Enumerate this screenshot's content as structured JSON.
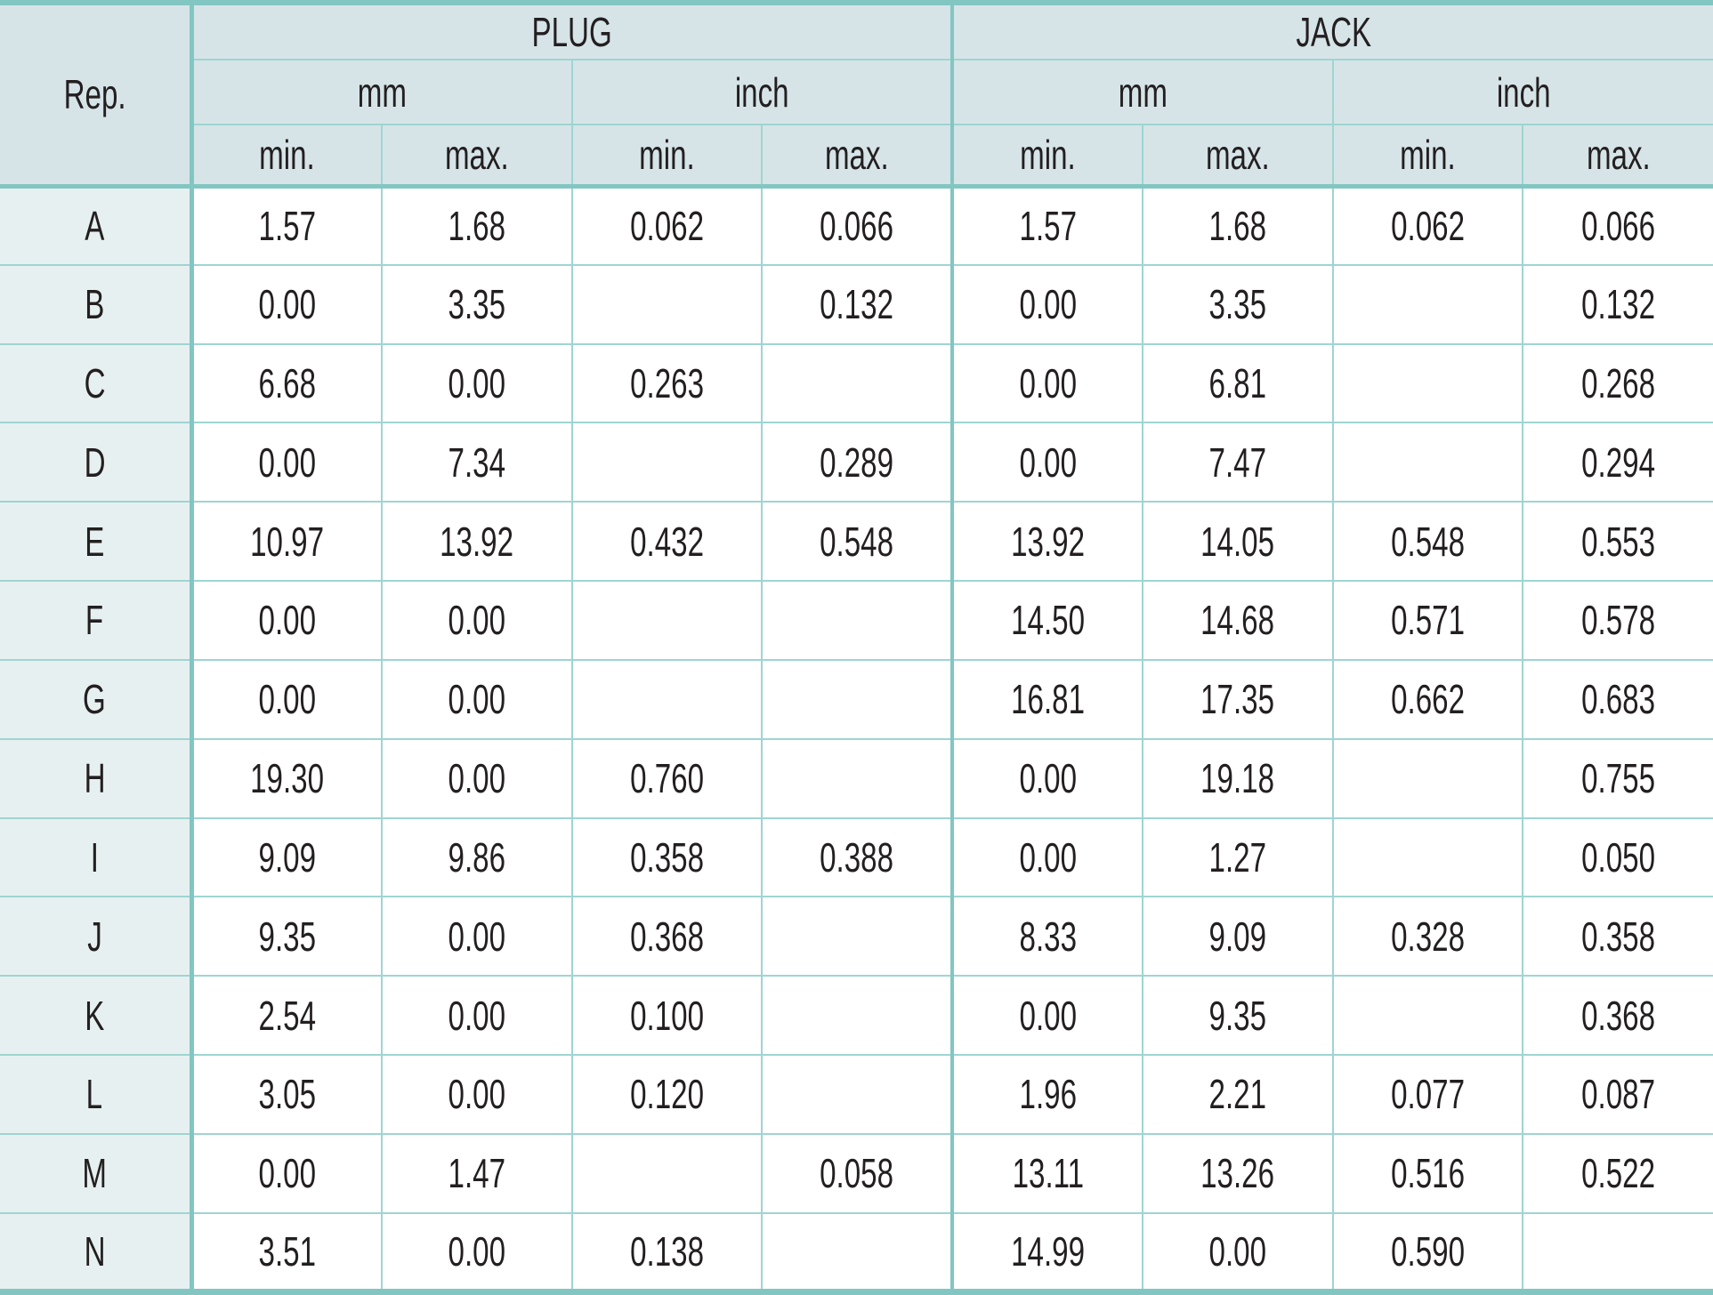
{
  "table": {
    "rep_header": "Rep.",
    "col_groups": [
      "PLUG",
      "JACK"
    ],
    "unit_headers": [
      "mm",
      "inch",
      "mm",
      "inch"
    ],
    "sub_headers": [
      "min.",
      "max.",
      "min.",
      "max.",
      "min.",
      "max.",
      "min.",
      "max."
    ],
    "rows": [
      {
        "rep": "A",
        "values": [
          "1.57",
          "1.68",
          "0.062",
          "0.066",
          "1.57",
          "1.68",
          "0.062",
          "0.066"
        ]
      },
      {
        "rep": "B",
        "values": [
          "0.00",
          "3.35",
          "",
          "0.132",
          "0.00",
          "3.35",
          "",
          "0.132"
        ]
      },
      {
        "rep": "C",
        "values": [
          "6.68",
          "0.00",
          "0.263",
          "",
          "0.00",
          "6.81",
          "",
          "0.268"
        ]
      },
      {
        "rep": "D",
        "values": [
          "0.00",
          "7.34",
          "",
          "0.289",
          "0.00",
          "7.47",
          "",
          "0.294"
        ]
      },
      {
        "rep": "E",
        "values": [
          "10.97",
          "13.92",
          "0.432",
          "0.548",
          "13.92",
          "14.05",
          "0.548",
          "0.553"
        ]
      },
      {
        "rep": "F",
        "values": [
          "0.00",
          "0.00",
          "",
          "",
          "14.50",
          "14.68",
          "0.571",
          "0.578"
        ]
      },
      {
        "rep": "G",
        "values": [
          "0.00",
          "0.00",
          "",
          "",
          "16.81",
          "17.35",
          "0.662",
          "0.683"
        ]
      },
      {
        "rep": "H",
        "values": [
          "19.30",
          "0.00",
          "0.760",
          "",
          "0.00",
          "19.18",
          "",
          "0.755"
        ]
      },
      {
        "rep": "I",
        "values": [
          "9.09",
          "9.86",
          "0.358",
          "0.388",
          "0.00",
          "1.27",
          "",
          "0.050"
        ]
      },
      {
        "rep": "J",
        "values": [
          "9.35",
          "0.00",
          "0.368",
          "",
          "8.33",
          "9.09",
          "0.328",
          "0.358"
        ]
      },
      {
        "rep": "K",
        "values": [
          "2.54",
          "0.00",
          "0.100",
          "",
          "0.00",
          "9.35",
          "",
          "0.368"
        ]
      },
      {
        "rep": "L",
        "values": [
          "3.05",
          "0.00",
          "0.120",
          "",
          "1.96",
          "2.21",
          "0.077",
          "0.087"
        ]
      },
      {
        "rep": "M",
        "values": [
          "0.00",
          "1.47",
          "",
          "0.058",
          "13.11",
          "13.26",
          "0.516",
          "0.522"
        ]
      },
      {
        "rep": "N",
        "values": [
          "3.51",
          "0.00",
          "0.138",
          "",
          "14.99",
          "0.00",
          "0.590",
          ""
        ]
      }
    ]
  },
  "colors": {
    "border_thick": "#82c6c2",
    "border_thin": "#9ed5d1",
    "header_bg": "#d6e4e8",
    "rep_col_bg": "#e7f0f0",
    "text": "#231f20"
  }
}
